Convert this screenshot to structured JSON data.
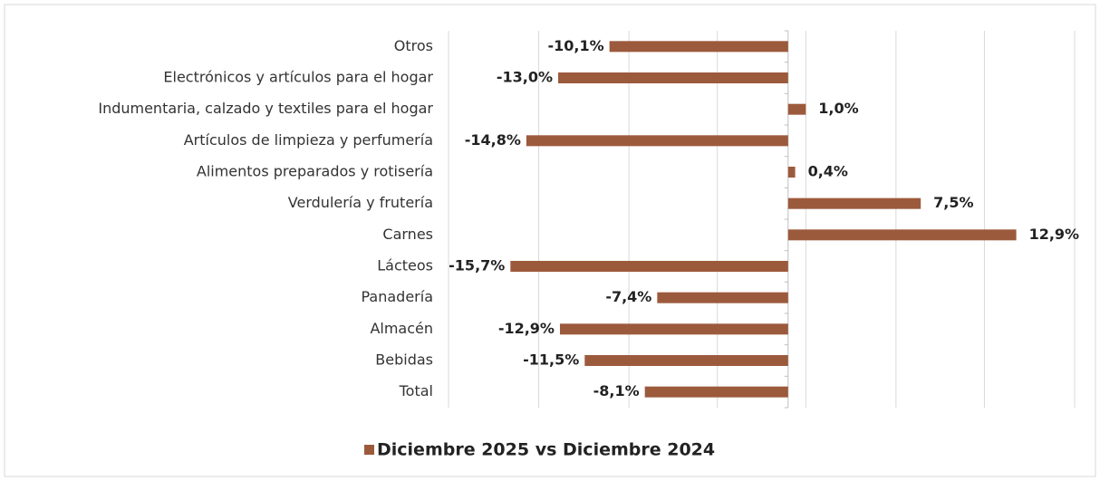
{
  "chart_data": {
    "type": "hbar",
    "categories": [
      "Otros",
      "Electrónicos y artículos para el hogar",
      "Indumentaria, calzado y textiles para el hogar",
      "Artículos de limpieza y perfumería",
      "Alimentos preparados y rotisería",
      "Verdulería y frutería",
      "Carnes",
      "Lácteos",
      "Panadería",
      "Almacén",
      "Bebidas",
      "Total"
    ],
    "series": [
      {
        "name": "Diciembre 2025 vs Diciembre 2024",
        "color": "#9c5a3c",
        "values": [
          -10.1,
          -13.0,
          1.0,
          -14.8,
          0.4,
          7.5,
          12.9,
          -15.7,
          -7.4,
          -12.9,
          -11.5,
          -8.1
        ],
        "value_labels": [
          "-10,1%",
          "-13,0%",
          "1,0%",
          "-14,8%",
          "0,4%",
          "7,5%",
          "12,9%",
          "-15,7%",
          "-7,4%",
          "-12,9%",
          "-11,5%",
          "-8,1%"
        ]
      }
    ],
    "xlim": [
      -19.2,
      16.2
    ],
    "xticks": [
      -19.2,
      -14.1,
      -9.0,
      -4.0,
      1.0,
      6.1,
      11.1,
      16.2
    ],
    "grid": true,
    "legend": "bottom"
  }
}
